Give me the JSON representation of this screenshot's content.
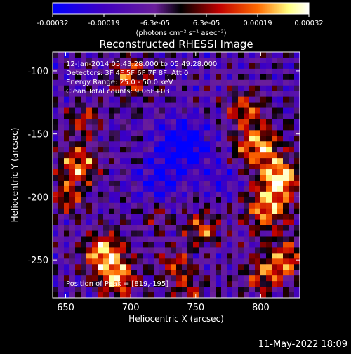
{
  "chart_data": {
    "type": "heatmap",
    "title": "Reconstructed RHESSI Image",
    "xlabel": "Heliocentric X (arcsec)",
    "ylabel": "Heliocentric Y (arcsec)",
    "xlim": [
      640,
      830
    ],
    "ylim": [
      -280,
      -85
    ],
    "x_ticks": [
      650,
      700,
      750,
      800
    ],
    "y_ticks": [
      -100,
      -150,
      -200,
      -250
    ],
    "colorbar": {
      "label": "(photons cm⁻² s⁻¹ asec⁻²)",
      "range": [
        -0.00032,
        0.00032
      ],
      "ticks": [
        "-0.00032",
        "-0.00019",
        "-6.3e-05",
        "6.3e-05",
        "0.00019",
        "0.00032"
      ],
      "colormap": [
        "#0000ff",
        "#4000c0",
        "#6a1e9a",
        "#000000",
        "#c00000",
        "#ff6a00",
        "#ffff80",
        "#ffffff"
      ]
    },
    "annotations": {
      "time_range": "12-Jan-2014 05:43:28.000 to 05:49:28.000",
      "detectors": "Detectors: 3F 4F 5F 6F 7F 8F, Att 0",
      "energy": "Energy Range: 25.0 - 50.0 keV",
      "method": "Clean    Total counts: 9.06E+03",
      "peak": "Position of Peak = [819,-195]"
    },
    "peak": [
      819,
      -195
    ],
    "sources": [
      {
        "x": 815,
        "y": -185,
        "amp": 1.0,
        "sigma": 10
      },
      {
        "x": 798,
        "y": -160,
        "amp": 0.85,
        "sigma": 12
      },
      {
        "x": 805,
        "y": -210,
        "amp": 0.8,
        "sigma": 12
      },
      {
        "x": 788,
        "y": -130,
        "amp": 0.55,
        "sigma": 10
      },
      {
        "x": 820,
        "y": -250,
        "amp": 0.65,
        "sigma": 11
      },
      {
        "x": 800,
        "y": -262,
        "amp": 0.55,
        "sigma": 10
      },
      {
        "x": 680,
        "y": -245,
        "amp": 0.9,
        "sigma": 11
      },
      {
        "x": 690,
        "y": -265,
        "amp": 0.75,
        "sigma": 10
      },
      {
        "x": 660,
        "y": -175,
        "amp": 0.8,
        "sigma": 10
      },
      {
        "x": 652,
        "y": -200,
        "amp": 0.55,
        "sigma": 9
      },
      {
        "x": 700,
        "y": -105,
        "amp": 0.7,
        "sigma": 9
      },
      {
        "x": 665,
        "y": -140,
        "amp": 0.5,
        "sigma": 9
      },
      {
        "x": 755,
        "y": -225,
        "amp": 0.6,
        "sigma": 9
      },
      {
        "x": 735,
        "y": -255,
        "amp": 0.55,
        "sigma": 9
      },
      {
        "x": 720,
        "y": -215,
        "amp": 0.35,
        "sigma": 8
      },
      {
        "x": 745,
        "y": -275,
        "amp": 0.45,
        "sigma": 8
      },
      {
        "x": 740,
        "y": -160,
        "amp": -0.7,
        "sigma": 14
      },
      {
        "x": 720,
        "y": -190,
        "amp": -0.4,
        "sigma": 12
      },
      {
        "x": 770,
        "y": -185,
        "amp": -0.3,
        "sigma": 10
      }
    ]
  },
  "footer": {
    "timestamp": "11-May-2022 18:09"
  }
}
